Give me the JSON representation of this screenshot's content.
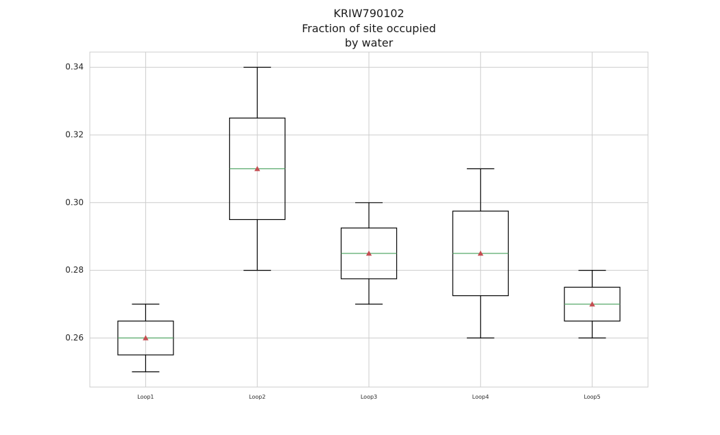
{
  "chart_data": {
    "type": "box",
    "title": "KRIW790102\nFraction of site occupied\nby water",
    "title_lines": [
      "KRIW790102",
      "Fraction of site occupied",
      "by water"
    ],
    "xlabel": "",
    "ylabel": "",
    "categories": [
      "Loop1",
      "Loop2",
      "Loop3",
      "Loop4",
      "Loop5"
    ],
    "boxes": [
      {
        "whisker_low": 0.25,
        "q1": 0.255,
        "median": 0.26,
        "mean": 0.26,
        "q3": 0.265,
        "whisker_high": 0.27
      },
      {
        "whisker_low": 0.28,
        "q1": 0.295,
        "median": 0.31,
        "mean": 0.31,
        "q3": 0.325,
        "whisker_high": 0.34
      },
      {
        "whisker_low": 0.27,
        "q1": 0.2775,
        "median": 0.285,
        "mean": 0.285,
        "q3": 0.2925,
        "whisker_high": 0.3
      },
      {
        "whisker_low": 0.26,
        "q1": 0.2725,
        "median": 0.285,
        "mean": 0.285,
        "q3": 0.2975,
        "whisker_high": 0.31
      },
      {
        "whisker_low": 0.26,
        "q1": 0.265,
        "median": 0.27,
        "mean": 0.27,
        "q3": 0.275,
        "whisker_high": 0.28
      }
    ],
    "yticks": [
      "0.26",
      "0.28",
      "0.30",
      "0.32",
      "0.34"
    ],
    "ylim": [
      0.2455,
      0.3445
    ],
    "grid": true,
    "colors": {
      "box": "#000000",
      "median": "#55a868",
      "mean_marker": "#c44e52",
      "grid": "#cccccc",
      "frame": "#cccccc"
    }
  }
}
